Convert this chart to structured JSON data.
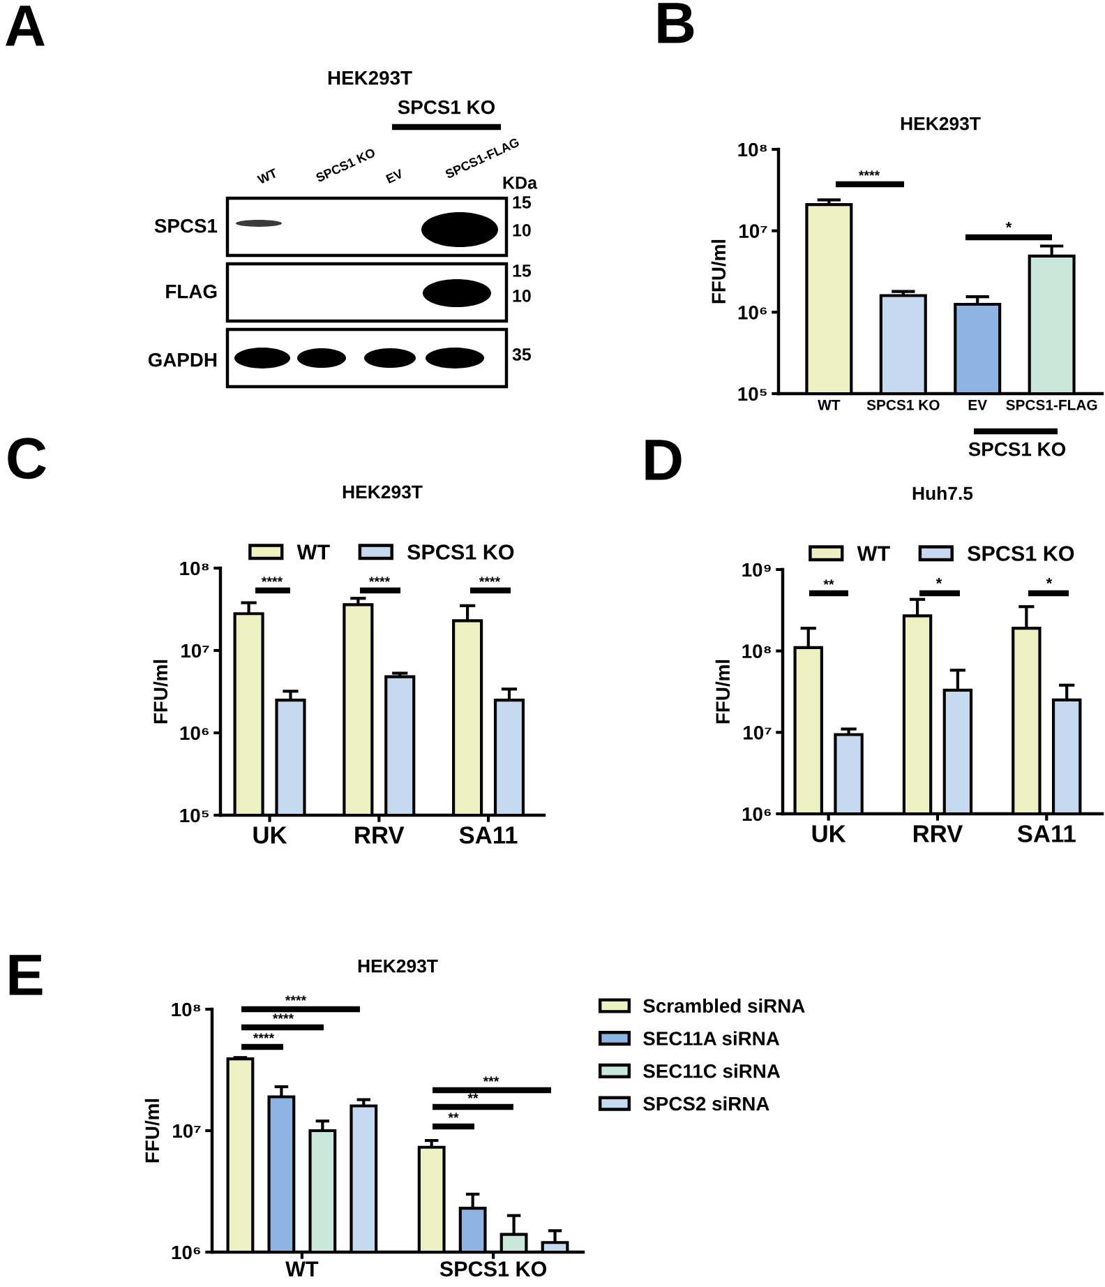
{
  "chart_data": [
    {
      "type": "other",
      "title": "HEK293T",
      "annotations": [
        "A",
        "SPCS1 KO",
        "WT",
        "SPCS1 KO",
        "EV",
        "SPCS1-FLAG",
        "KDa",
        "SPCS1",
        "FLAG",
        "GAPDH",
        "15",
        "10",
        "15",
        "10",
        "35"
      ]
    },
    {
      "type": "bar",
      "title": "HEK293T",
      "ylabel": "FFU/ml",
      "categories": [
        "WT",
        "SPCS1 KO",
        "EV",
        "SPCS1-FLAG"
      ],
      "values": [
        21000000,
        1600000,
        1250000,
        4900000
      ],
      "colors": [
        "#edf0c0",
        "#c5d9f1",
        "#8db4e2",
        "#c9e7da"
      ],
      "errors": [
        [
          21000000,
          24000000
        ],
        [
          1600000,
          1800000
        ],
        [
          1250000,
          1550000
        ],
        [
          4900000,
          6500000
        ]
      ],
      "log": true,
      "ylim": [
        100000,
        100000000
      ],
      "yticks": [
        {
          "value": 100000,
          "label": "10⁵"
        },
        {
          "value": 1000000,
          "label": "10⁶"
        },
        {
          "value": 10000000,
          "label": "10⁷"
        },
        {
          "value": 100000000,
          "label": "10⁸"
        }
      ],
      "annotations": [
        "B",
        "****",
        "*",
        "SPCS1 KO"
      ]
    },
    {
      "type": "bar",
      "title": "HEK293T",
      "ylabel": "FFU/ml",
      "categories": [
        "UK",
        "RRV",
        "SA11"
      ],
      "series": [
        {
          "name": "WT",
          "color": "#edf0c0",
          "values": [
            28000000,
            36000000,
            23000000
          ],
          "errors": [
            [
              28000000,
              38000000
            ],
            [
              36000000,
              43000000
            ],
            [
              23000000,
              35000000
            ]
          ]
        },
        {
          "name": "SPCS1 KO",
          "color": "#c5d9f1",
          "values": [
            2500000,
            4800000,
            2500000
          ],
          "errors": [
            [
              2500000,
              3200000
            ],
            [
              4800000,
              5300000
            ],
            [
              2500000,
              3400000
            ]
          ]
        }
      ],
      "log": true,
      "ylim": [
        100000,
        100000000
      ],
      "yticks": [
        {
          "value": 100000,
          "label": "10⁵"
        },
        {
          "value": 1000000,
          "label": "10⁶"
        },
        {
          "value": 10000000,
          "label": "10⁷"
        },
        {
          "value": 100000000,
          "label": "10⁸"
        }
      ],
      "legend": "top",
      "annotations": [
        "C",
        "****",
        "****",
        "****"
      ]
    },
    {
      "type": "bar",
      "title": "Huh7.5",
      "ylabel": "FFU/ml",
      "categories": [
        "UK",
        "RRV",
        "SA11"
      ],
      "series": [
        {
          "name": "WT",
          "color": "#edf0c0",
          "values": [
            110000000,
            270000000,
            190000000
          ],
          "errors": [
            [
              110000000,
              190000000
            ],
            [
              270000000,
              430000000
            ],
            [
              190000000,
              350000000
            ]
          ]
        },
        {
          "name": "SPCS1 KO",
          "color": "#c5d9f1",
          "values": [
            9400000,
            33000000,
            25000000
          ],
          "errors": [
            [
              9400000,
              11000000
            ],
            [
              33000000,
              58000000
            ],
            [
              25000000,
              38000000
            ]
          ]
        }
      ],
      "log": true,
      "ylim": [
        1000000,
        1000000000
      ],
      "yticks": [
        {
          "value": 1000000,
          "label": "10⁶"
        },
        {
          "value": 10000000,
          "label": "10⁷"
        },
        {
          "value": 100000000,
          "label": "10⁸"
        },
        {
          "value": 1000000000,
          "label": "10⁹"
        }
      ],
      "legend": "top",
      "annotations": [
        "D",
        "**",
        "*",
        "*"
      ]
    },
    {
      "type": "bar",
      "title": "HEK293T",
      "ylabel": "FFU/ml",
      "categories": [
        "WT",
        "SPCS1 KO"
      ],
      "series": [
        {
          "name": "Scrambled siRNA",
          "color": "#edf0c0",
          "values": [
            39000000,
            7300000
          ],
          "errors": [
            [
              39000000,
              40000000
            ],
            [
              7300000,
              8300000
            ]
          ]
        },
        {
          "name": "SEC11A siRNA",
          "color": "#8db4e2",
          "values": [
            19000000,
            2300000
          ],
          "errors": [
            [
              19000000,
              23000000
            ],
            [
              2300000,
              3000000
            ]
          ]
        },
        {
          "name": "SEC11C siRNA",
          "color": "#c9e7da",
          "values": [
            10000000,
            1400000
          ],
          "errors": [
            [
              10000000,
              12000000
            ],
            [
              1400000,
              2000000
            ]
          ]
        },
        {
          "name": "SPCS2 siRNA",
          "color": "#c5d9f1",
          "values": [
            16000000,
            1200000
          ],
          "errors": [
            [
              16000000,
              18000000
            ],
            [
              1200000,
              1500000
            ]
          ]
        }
      ],
      "log": true,
      "ylim": [
        1000000,
        100000000
      ],
      "yticks": [
        {
          "value": 1000000,
          "label": "10⁶"
        },
        {
          "value": 10000000,
          "label": "10⁷"
        },
        {
          "value": 100000000,
          "label": "10⁸"
        }
      ],
      "legend": "right",
      "annotations": [
        "E",
        "****",
        "****",
        "****",
        "**",
        "**",
        "***"
      ]
    }
  ]
}
